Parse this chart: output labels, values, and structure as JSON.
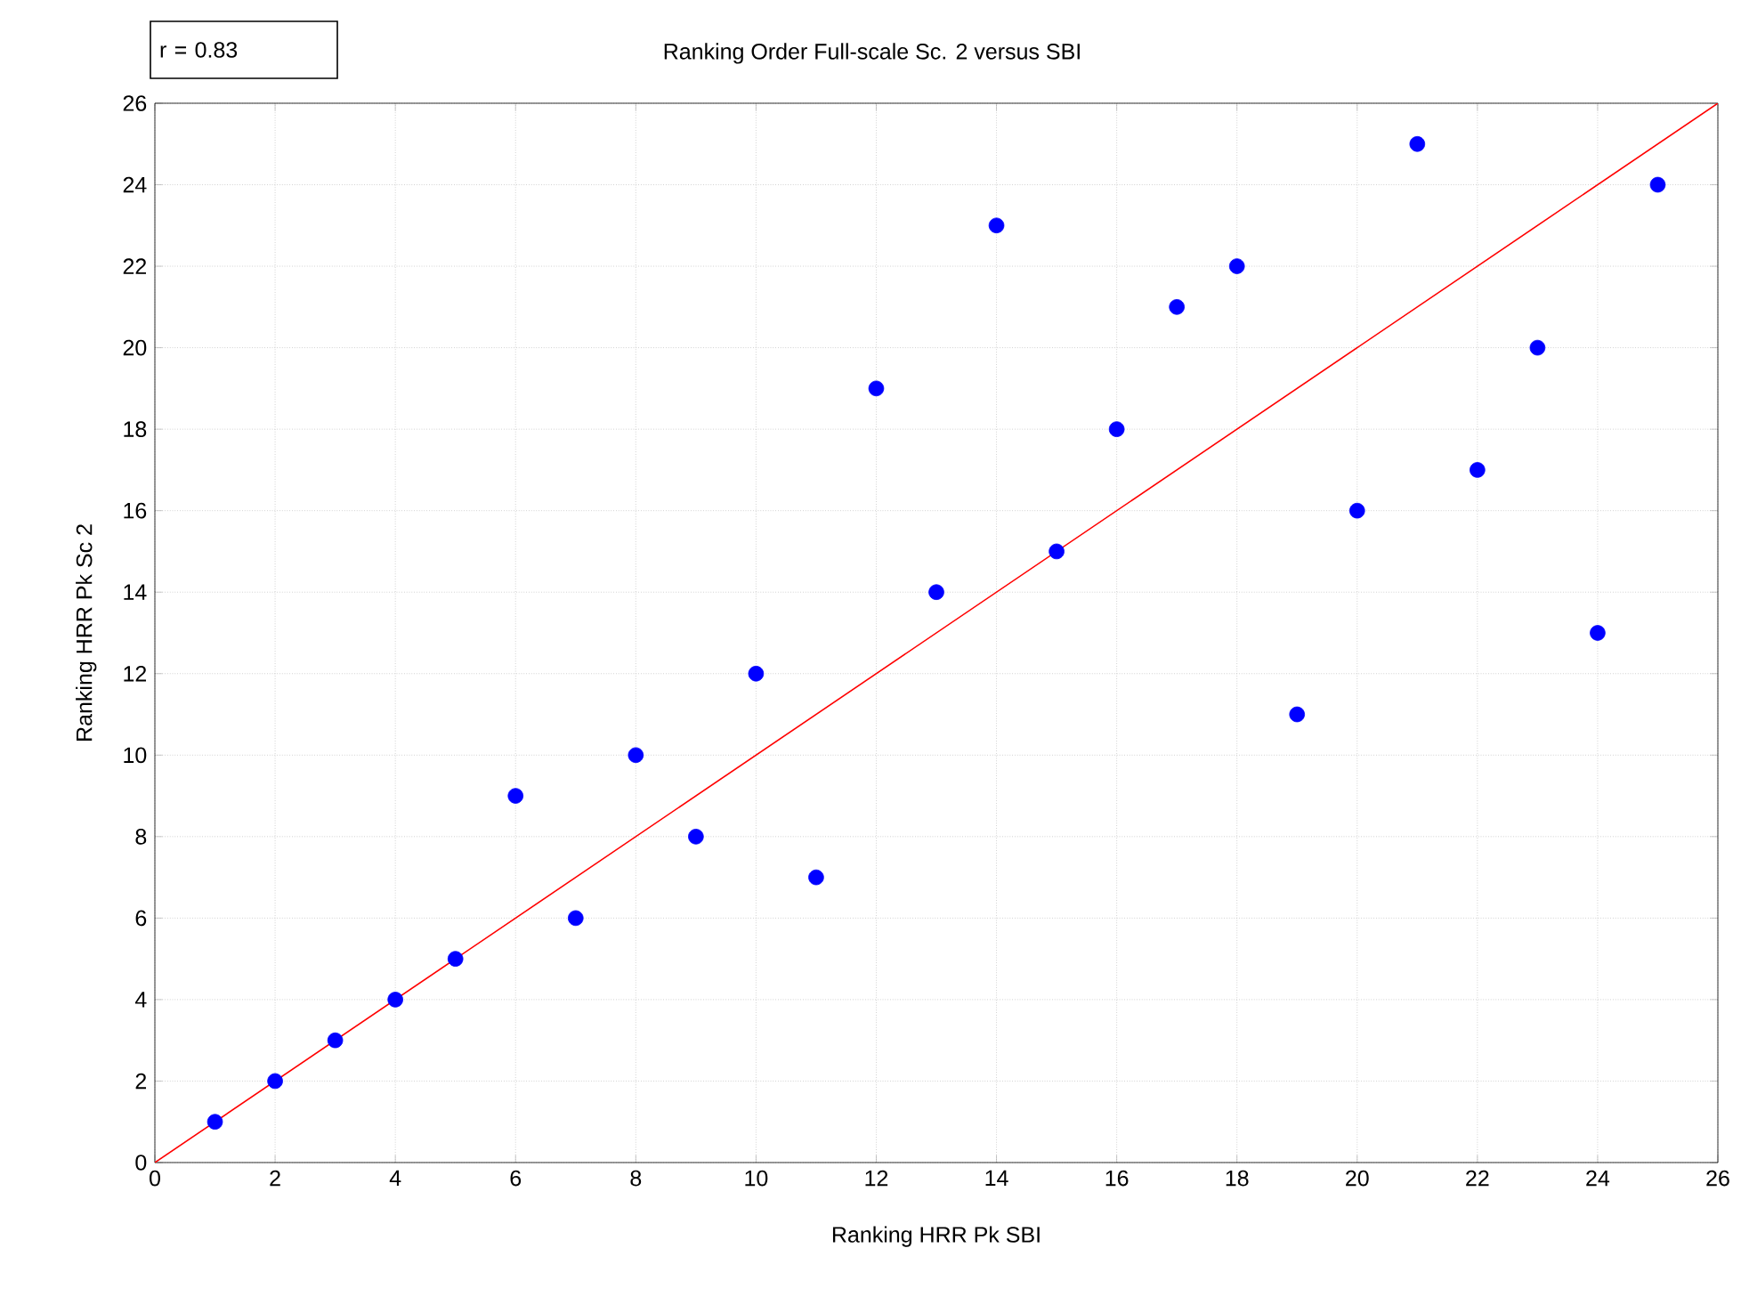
{
  "chart_data": {
    "type": "scatter",
    "title": "Ranking Order Full-scale Sc. 2 versus SBI",
    "xlabel": "Ranking HRR Pk SBI",
    "ylabel": "Ranking HRR Pk Sc 2",
    "annotations": [
      "r = 0.83"
    ],
    "series": [
      {
        "color": "#0000ff",
        "x": [
          1,
          2,
          3,
          4,
          5,
          6,
          7,
          8,
          9,
          10,
          11,
          12,
          13,
          14,
          15,
          16,
          17,
          18,
          19,
          20,
          21,
          22,
          23,
          24,
          25
        ],
        "values": [
          1,
          2,
          3,
          4,
          5,
          9,
          6,
          10,
          8,
          12,
          7,
          19,
          14,
          23,
          15,
          18,
          21,
          22,
          11,
          16,
          25,
          17,
          20,
          13,
          24
        ]
      },
      {
        "type": "line",
        "marker": "none",
        "color": "#ff0000",
        "x": [
          0,
          26
        ],
        "values": [
          0,
          26
        ]
      }
    ],
    "xlim": [
      0,
      26
    ],
    "ylim": [
      0,
      26
    ],
    "xticks": [
      0,
      2,
      4,
      6,
      8,
      10,
      12,
      14,
      16,
      18,
      20,
      22,
      24,
      26
    ],
    "yticks": [
      0,
      2,
      4,
      6,
      8,
      10,
      12,
      14,
      16,
      18,
      20,
      22,
      24,
      26
    ],
    "grid": true,
    "marker": "circle",
    "line_style": "solid"
  }
}
